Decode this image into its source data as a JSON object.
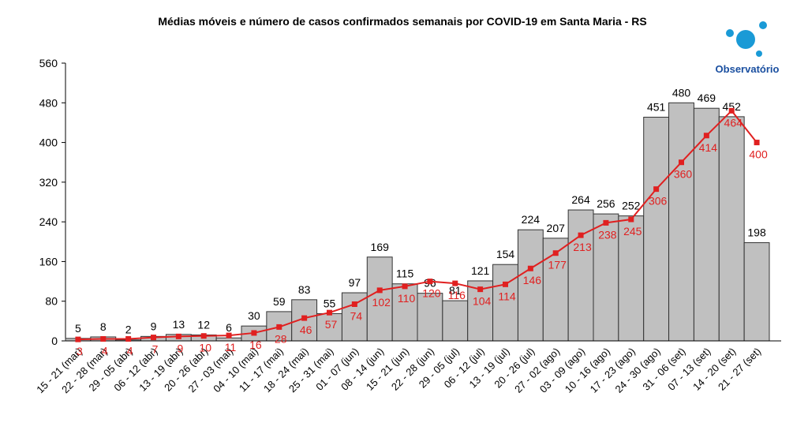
{
  "chart_data": {
    "type": "bar_line",
    "title": "Médias móveis e número de casos confirmados semanais por COVID-19 em Santa Maria - RS",
    "logo_text": "Observatório",
    "categories": [
      "15 - 21 (mar)",
      "22 - 28 (mar)",
      "29 - 05 (abr)",
      "06 - 12 (abr)",
      "13 - 19 (abr)",
      "20 - 26 (abr)",
      "27 - 03 (mai)",
      "04 - 10 (mai)",
      "11 - 17 (mai)",
      "18 - 24 (mai)",
      "25 - 31 (mai)",
      "01 - 07 (jun)",
      "08 - 14 (jun)",
      "15 - 21 (jun)",
      "22 - 28 (jun)",
      "29 - 05 (jul)",
      "06 - 12 (jul)",
      "13 - 19 (jul)",
      "20 - 26 (jul)",
      "27 - 02 (ago)",
      "03 - 09 (ago)",
      "10 - 16 (ago)",
      "17 - 23 (ago)",
      "24 - 30 (ago)",
      "31 - 06 (set)",
      "07 - 13 (set)",
      "14 - 20 (set)",
      "21 - 27 (set)"
    ],
    "series": [
      {
        "type": "bar",
        "color": "#c0c0c0",
        "label_color": "#000000",
        "values": [
          5,
          8,
          2,
          9,
          13,
          12,
          6,
          30,
          59,
          83,
          55,
          97,
          169,
          115,
          96,
          81,
          121,
          154,
          224,
          207,
          264,
          256,
          252,
          451,
          480,
          469,
          452,
          198
        ]
      },
      {
        "type": "line",
        "color": "#e02020",
        "label_color": "#e02020",
        "values": [
          3,
          4,
          4,
          7,
          9,
          10,
          11,
          16,
          28,
          46,
          57,
          74,
          102,
          110,
          120,
          116,
          104,
          114,
          146,
          177,
          213,
          238,
          245,
          306,
          360,
          414,
          464,
          400
        ]
      }
    ],
    "ylim": [
      0,
      560
    ],
    "yticks": [
      0,
      80,
      160,
      240,
      320,
      400,
      480,
      560
    ]
  }
}
